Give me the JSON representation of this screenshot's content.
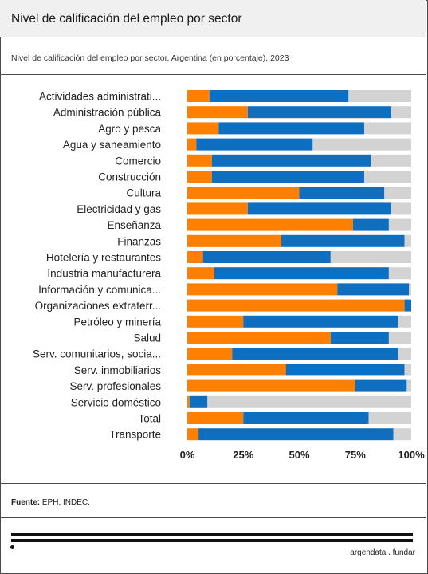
{
  "header": {
    "title": "Nivel de calificación del empleo por sector"
  },
  "subtitle": "Nivel de calificación del empleo por sector, Argentina (en porcentaje), 2023",
  "source": {
    "label": "Fuente:",
    "text": "EPH, INDEC."
  },
  "brand": {
    "text": "argendata . fundar"
  },
  "colors": {
    "orange": "#ff7f00",
    "blue": "#0e6fc1",
    "gray": "#d3d3d3"
  },
  "chart_data": {
    "type": "bar",
    "orientation": "horizontal",
    "stacked": true,
    "xlim": [
      0,
      100
    ],
    "x_ticks": [
      "0%",
      "25%",
      "50%",
      "75%",
      "100%"
    ],
    "categories": [
      "Actividades administrati...",
      "Administración pública",
      "Agro y pesca",
      "Agua y saneamiento",
      "Comercio",
      "Construcción",
      "Cultura",
      "Electricidad y gas",
      "Enseñanza",
      "Finanzas",
      "Hotelería y restaurantes",
      "Industria manufacturera",
      "Información y comunica...",
      "Organizaciones extraterr...",
      "Petróleo y minería",
      "Salud",
      "Serv. comunitarios, socia...",
      "Serv. inmobiliarios",
      "Serv. profesionales",
      "Servicio doméstico",
      "Total",
      "Transporte"
    ],
    "series": [
      {
        "color": "#ff7f00",
        "values": [
          10,
          27,
          14,
          4,
          11,
          11,
          50,
          27,
          74,
          42,
          7,
          12,
          67,
          97,
          25,
          64,
          20,
          44,
          75,
          1,
          25,
          5
        ]
      },
      {
        "color": "#0e6fc1",
        "values": [
          62,
          64,
          65,
          52,
          71,
          68,
          38,
          64,
          16,
          55,
          57,
          78,
          32,
          3,
          69,
          26,
          74,
          53,
          23,
          8,
          56,
          87
        ]
      },
      {
        "color": "#d3d3d3",
        "values": [
          28,
          9,
          21,
          44,
          18,
          21,
          12,
          9,
          10,
          3,
          36,
          10,
          1,
          0,
          6,
          10,
          6,
          3,
          2,
          91,
          19,
          8
        ]
      }
    ]
  }
}
